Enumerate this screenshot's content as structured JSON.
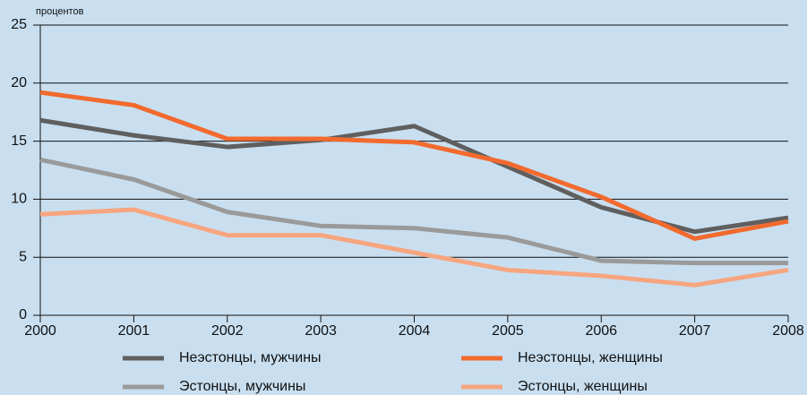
{
  "chart_data": {
    "type": "line",
    "y_label": "процентов",
    "x": [
      2000,
      2001,
      2002,
      2003,
      2004,
      2005,
      2006,
      2007,
      2008
    ],
    "xlim": [
      2000,
      2008
    ],
    "xticks": [
      2000,
      2001,
      2002,
      2003,
      2004,
      2005,
      2006,
      2007,
      2008
    ],
    "ylim": [
      0,
      25
    ],
    "yticks": [
      0,
      5,
      10,
      15,
      20,
      25
    ],
    "grid": true,
    "series": [
      {
        "name": "Неэстонцы, мужчины",
        "color": "#5f5f5f",
        "values": [
          16.8,
          15.5,
          14.5,
          15.1,
          16.3,
          12.8,
          9.3,
          7.2,
          8.4
        ]
      },
      {
        "name": "Неэстонцы, женщины",
        "color": "#f26a2e",
        "values": [
          19.2,
          18.1,
          15.2,
          15.2,
          14.9,
          13.1,
          10.2,
          6.6,
          8.1
        ]
      },
      {
        "name": "Эстонцы, мужчины",
        "color": "#9a9a9a",
        "values": [
          13.4,
          11.7,
          8.9,
          7.7,
          7.5,
          6.7,
          4.7,
          4.5,
          4.5
        ]
      },
      {
        "name": "Эстонцы, женщины",
        "color": "#f7a57f",
        "values": [
          8.7,
          9.1,
          6.9,
          6.9,
          5.4,
          3.9,
          3.4,
          2.6,
          3.9
        ]
      }
    ]
  }
}
